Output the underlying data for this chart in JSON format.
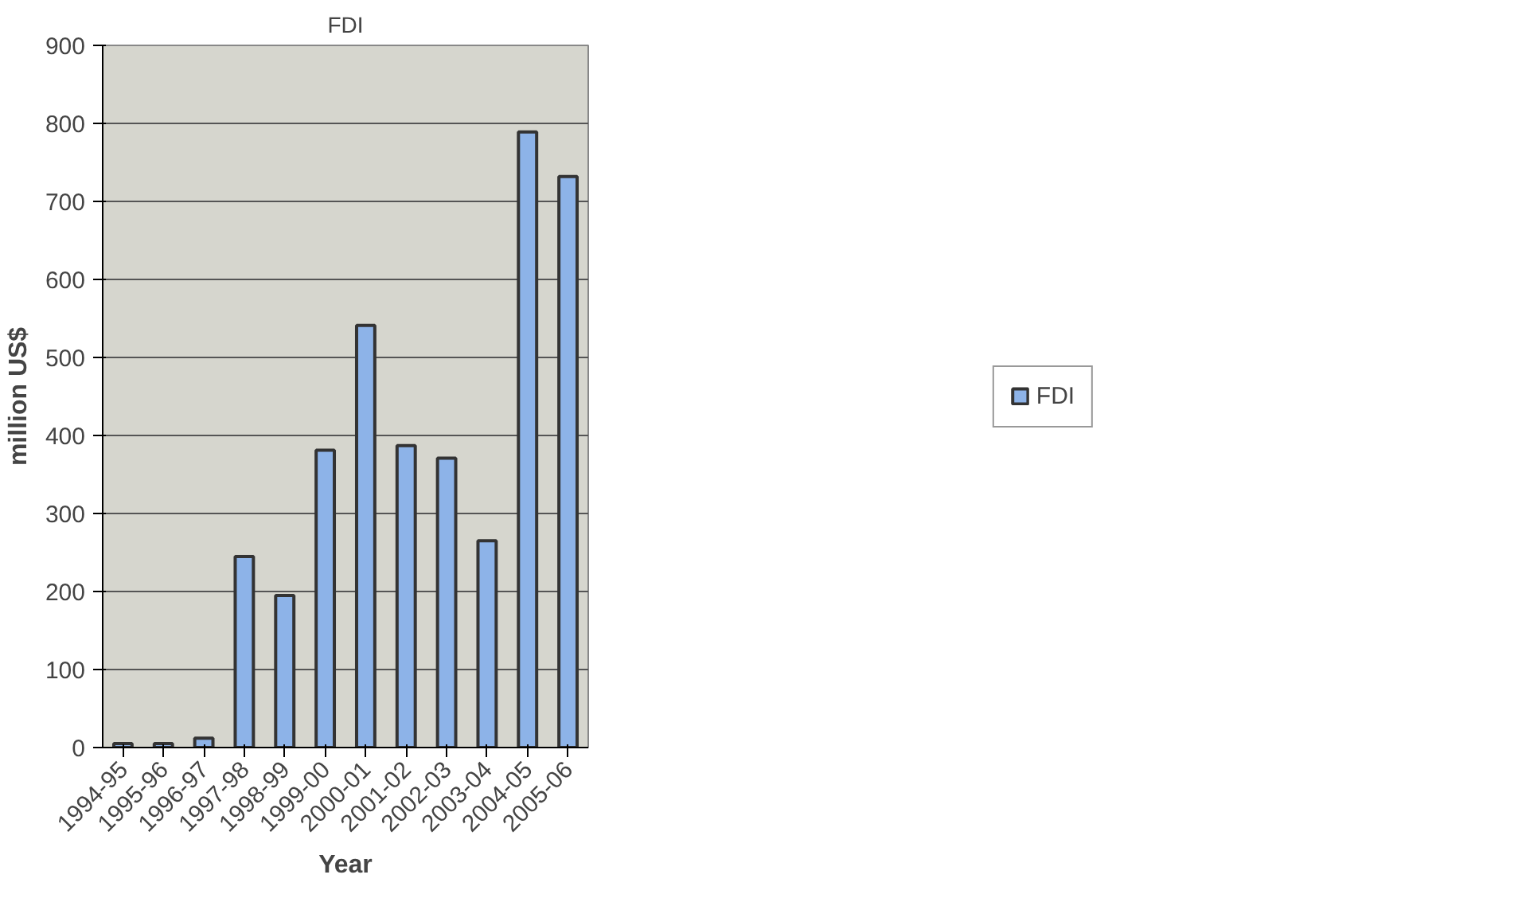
{
  "chart_data": {
    "type": "bar",
    "title": "FDI",
    "xlabel": "Year",
    "ylabel": "million US$",
    "categories": [
      "1994-95",
      "1995-96",
      "1996-97",
      "1997-98",
      "1998-99",
      "1999-00",
      "2000-01",
      "2001-02",
      "2002-03",
      "2003-04",
      "2004-05",
      "2005-06"
    ],
    "series": [
      {
        "name": "FDI",
        "color": "#8db3e8",
        "values": [
          5,
          5,
          12,
          245,
          195,
          381,
          541,
          387,
          371,
          265,
          789,
          732
        ]
      }
    ],
    "ylim": [
      0,
      900
    ],
    "yticks": [
      0,
      100,
      200,
      300,
      400,
      500,
      600,
      700,
      800,
      900
    ],
    "grid": "y",
    "legend": "right"
  }
}
